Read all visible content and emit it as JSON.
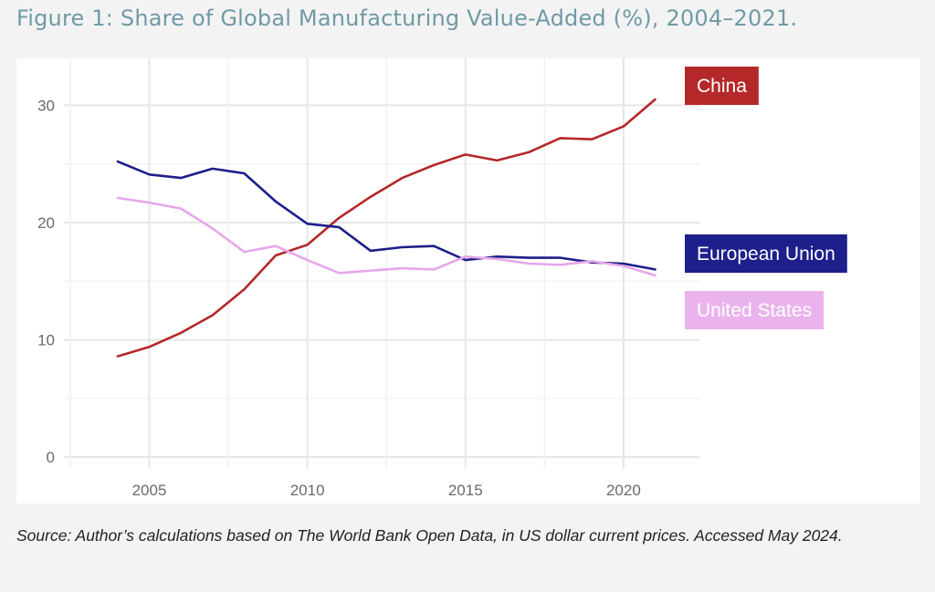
{
  "figure": {
    "title": "Figure 1: Share of Global Manufacturing Value-Added (%), 2004–2021.",
    "source": "Source: Author’s calculations based on The World Bank Open Data, in US dollar current prices. Accessed May 2024."
  },
  "chart_data": {
    "type": "line",
    "title": "",
    "xlabel": "",
    "ylabel": "",
    "x": [
      2004,
      2005,
      2006,
      2007,
      2008,
      2009,
      2010,
      2011,
      2012,
      2013,
      2014,
      2015,
      2016,
      2017,
      2018,
      2019,
      2020,
      2021
    ],
    "xlim": [
      2002.3,
      2022.4
    ],
    "ylim": [
      -1,
      34
    ],
    "xticks": [
      2005,
      2010,
      2015,
      2020
    ],
    "yticks": [
      0,
      10,
      20,
      30
    ],
    "grid": true,
    "series": [
      {
        "name": "China",
        "color": "#b5282a",
        "values": [
          8.6,
          9.4,
          10.6,
          12.1,
          14.3,
          17.2,
          18.1,
          20.4,
          22.2,
          23.8,
          24.9,
          25.8,
          25.3,
          26.0,
          27.2,
          27.1,
          28.2,
          30.5
        ]
      },
      {
        "name": "European Union",
        "color": "#1d1f8a",
        "values": [
          25.2,
          24.1,
          23.8,
          24.6,
          24.2,
          21.8,
          19.9,
          19.6,
          17.6,
          17.9,
          18.0,
          16.8,
          17.1,
          17.0,
          17.0,
          16.6,
          16.5,
          16.0
        ]
      },
      {
        "name": "United States",
        "color": "#e7a6ea",
        "values": [
          22.1,
          21.7,
          21.2,
          19.5,
          17.5,
          18.0,
          16.8,
          15.7,
          15.9,
          16.1,
          16.0,
          17.1,
          16.9,
          16.5,
          16.4,
          16.7,
          16.3,
          15.5
        ]
      }
    ]
  }
}
